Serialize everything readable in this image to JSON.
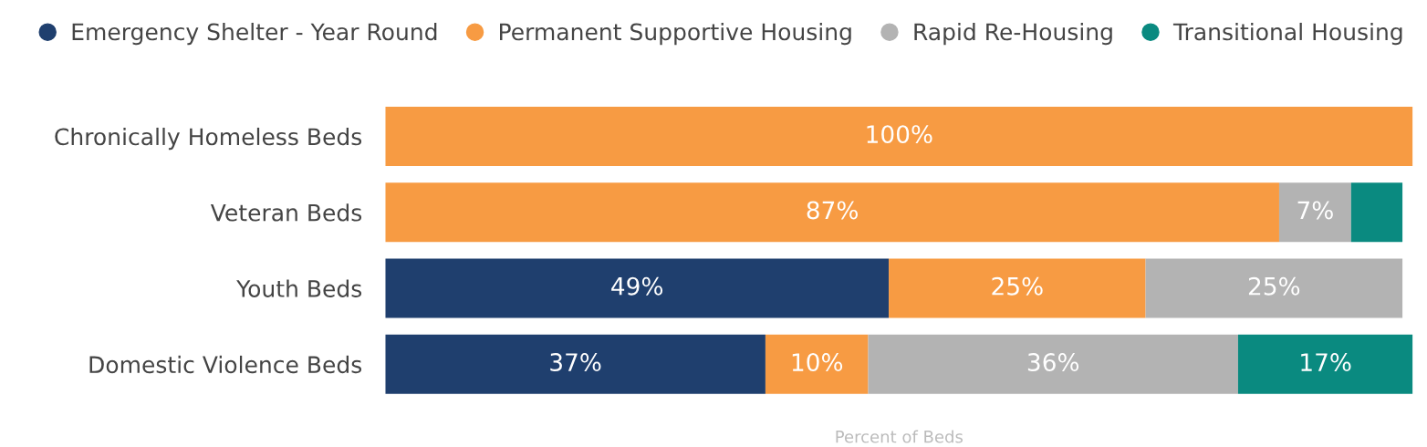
{
  "chart_data": {
    "type": "bar",
    "orientation": "horizontal",
    "stacked": true,
    "categories": [
      "Chronically Homeless Beds",
      "Veteran Beds",
      "Youth Beds",
      "Domestic Violence Beds"
    ],
    "series": [
      {
        "name": "Emergency Shelter - Year Round",
        "color": "#1f3f6e",
        "values": [
          null,
          null,
          49,
          37
        ],
        "value_labels": [
          null,
          null,
          "49%",
          "37%"
        ]
      },
      {
        "name": "Permanent Supportive Housing",
        "color": "#f79b43",
        "values": [
          100,
          87,
          25,
          10
        ],
        "value_labels": [
          "100%",
          "87%",
          "25%",
          "10%"
        ]
      },
      {
        "name": "Rapid Re-Housing",
        "color": "#b3b3b3",
        "values": [
          null,
          7,
          25,
          36
        ],
        "value_labels": [
          null,
          "7%",
          "25%",
          "36%"
        ]
      },
      {
        "name": "Transitional Housing",
        "color": "#0a8a80",
        "values": [
          null,
          5,
          null,
          17
        ],
        "value_labels": [
          null,
          null,
          null,
          "17%"
        ]
      }
    ],
    "xlim": [
      0,
      100
    ],
    "xlabel": "Percent of Beds",
    "tick_labels": "y",
    "legend": "top left",
    "grid": false
  }
}
